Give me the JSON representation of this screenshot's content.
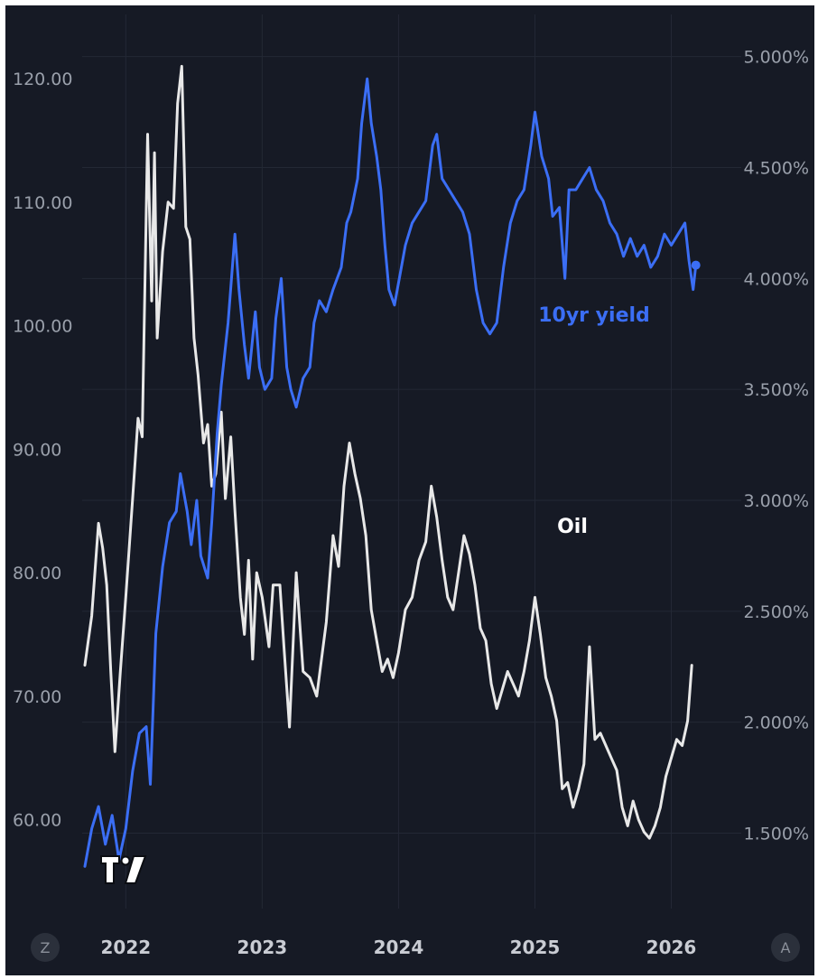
{
  "chart_data": {
    "type": "line",
    "left_axis": {
      "ticks": [
        "120.00",
        "110.00",
        "100.00",
        "90.00",
        "80.00",
        "70.00",
        "60.00"
      ],
      "tick_values": [
        120,
        110,
        100,
        90,
        80,
        70,
        60
      ],
      "range": [
        52.8,
        125.2
      ]
    },
    "right_axis": {
      "ticks": [
        "5.000%",
        "4.500%",
        "4.000%",
        "3.500%",
        "3.000%",
        "2.500%",
        "2.000%",
        "1.500%"
      ],
      "tick_values": [
        5.0,
        4.5,
        4.0,
        3.5,
        3.0,
        2.5,
        2.0,
        1.5
      ],
      "range": [
        1.16,
        5.19
      ]
    },
    "x_axis": {
      "ticks": [
        "2022",
        "2023",
        "2024",
        "2025",
        "2026"
      ],
      "tick_values": [
        2022.0,
        2023.0,
        2024.0,
        2025.0,
        2026.0
      ],
      "range": [
        2021.68,
        2026.48
      ]
    },
    "grid": true,
    "series": [
      {
        "name": "10yr yield",
        "axis": "right",
        "color": "#3b6ef5",
        "points": [
          [
            2021.7,
            1.35
          ],
          [
            2021.75,
            1.52
          ],
          [
            2021.8,
            1.62
          ],
          [
            2021.85,
            1.45
          ],
          [
            2021.9,
            1.58
          ],
          [
            2021.95,
            1.38
          ],
          [
            2022.0,
            1.52
          ],
          [
            2022.05,
            1.78
          ],
          [
            2022.1,
            1.95
          ],
          [
            2022.15,
            1.98
          ],
          [
            2022.18,
            1.72
          ],
          [
            2022.22,
            2.4
          ],
          [
            2022.27,
            2.7
          ],
          [
            2022.32,
            2.9
          ],
          [
            2022.37,
            2.95
          ],
          [
            2022.4,
            3.12
          ],
          [
            2022.45,
            2.95
          ],
          [
            2022.48,
            2.8
          ],
          [
            2022.52,
            3.0
          ],
          [
            2022.55,
            2.75
          ],
          [
            2022.6,
            2.65
          ],
          [
            2022.63,
            2.9
          ],
          [
            2022.67,
            3.3
          ],
          [
            2022.7,
            3.52
          ],
          [
            2022.75,
            3.8
          ],
          [
            2022.8,
            4.2
          ],
          [
            2022.83,
            3.95
          ],
          [
            2022.87,
            3.7
          ],
          [
            2022.9,
            3.55
          ],
          [
            2022.95,
            3.85
          ],
          [
            2022.98,
            3.6
          ],
          [
            2023.02,
            3.5
          ],
          [
            2023.07,
            3.55
          ],
          [
            2023.1,
            3.82
          ],
          [
            2023.14,
            4.0
          ],
          [
            2023.18,
            3.6
          ],
          [
            2023.21,
            3.5
          ],
          [
            2023.25,
            3.42
          ],
          [
            2023.3,
            3.55
          ],
          [
            2023.35,
            3.6
          ],
          [
            2023.38,
            3.8
          ],
          [
            2023.42,
            3.9
          ],
          [
            2023.47,
            3.85
          ],
          [
            2023.52,
            3.95
          ],
          [
            2023.58,
            4.05
          ],
          [
            2023.62,
            4.25
          ],
          [
            2023.65,
            4.3
          ],
          [
            2023.7,
            4.45
          ],
          [
            2023.73,
            4.7
          ],
          [
            2023.77,
            4.9
          ],
          [
            2023.8,
            4.7
          ],
          [
            2023.84,
            4.55
          ],
          [
            2023.87,
            4.4
          ],
          [
            2023.9,
            4.15
          ],
          [
            2023.93,
            3.95
          ],
          [
            2023.97,
            3.88
          ],
          [
            2024.0,
            3.98
          ],
          [
            2024.05,
            4.15
          ],
          [
            2024.1,
            4.25
          ],
          [
            2024.15,
            4.3
          ],
          [
            2024.2,
            4.35
          ],
          [
            2024.25,
            4.6
          ],
          [
            2024.28,
            4.65
          ],
          [
            2024.32,
            4.45
          ],
          [
            2024.37,
            4.4
          ],
          [
            2024.42,
            4.35
          ],
          [
            2024.47,
            4.3
          ],
          [
            2024.52,
            4.2
          ],
          [
            2024.57,
            3.95
          ],
          [
            2024.62,
            3.8
          ],
          [
            2024.67,
            3.75
          ],
          [
            2024.72,
            3.8
          ],
          [
            2024.77,
            4.05
          ],
          [
            2024.82,
            4.25
          ],
          [
            2024.87,
            4.35
          ],
          [
            2024.92,
            4.4
          ],
          [
            2024.97,
            4.6
          ],
          [
            2025.0,
            4.75
          ],
          [
            2025.05,
            4.55
          ],
          [
            2025.1,
            4.45
          ],
          [
            2025.13,
            4.28
          ],
          [
            2025.18,
            4.32
          ],
          [
            2025.22,
            4.0
          ],
          [
            2025.25,
            4.4
          ],
          [
            2025.3,
            4.4
          ],
          [
            2025.35,
            4.45
          ],
          [
            2025.4,
            4.5
          ],
          [
            2025.45,
            4.4
          ],
          [
            2025.5,
            4.35
          ],
          [
            2025.55,
            4.25
          ],
          [
            2025.6,
            4.2
          ],
          [
            2025.65,
            4.1
          ],
          [
            2025.7,
            4.18
          ],
          [
            2025.75,
            4.1
          ],
          [
            2025.8,
            4.15
          ],
          [
            2025.85,
            4.05
          ],
          [
            2025.9,
            4.1
          ],
          [
            2025.95,
            4.2
          ],
          [
            2026.0,
            4.15
          ],
          [
            2026.05,
            4.2
          ],
          [
            2026.1,
            4.25
          ],
          [
            2026.13,
            4.08
          ],
          [
            2026.16,
            3.95
          ],
          [
            2026.18,
            4.06
          ]
        ]
      },
      {
        "name": "Oil",
        "axis": "left",
        "color": "#e8e8e8",
        "points": [
          [
            2021.7,
            72.5
          ],
          [
            2021.75,
            76.5
          ],
          [
            2021.8,
            84.0
          ],
          [
            2021.83,
            82.0
          ],
          [
            2021.86,
            79.0
          ],
          [
            2021.89,
            72.0
          ],
          [
            2021.92,
            65.5
          ],
          [
            2021.96,
            72.0
          ],
          [
            2022.0,
            78.0
          ],
          [
            2022.05,
            86.0
          ],
          [
            2022.09,
            92.5
          ],
          [
            2022.12,
            91.0
          ],
          [
            2022.16,
            115.5
          ],
          [
            2022.19,
            102.0
          ],
          [
            2022.21,
            114.0
          ],
          [
            2022.23,
            99.0
          ],
          [
            2022.27,
            106.0
          ],
          [
            2022.31,
            110.0
          ],
          [
            2022.35,
            109.5
          ],
          [
            2022.38,
            118.0
          ],
          [
            2022.41,
            121.0
          ],
          [
            2022.44,
            108.0
          ],
          [
            2022.47,
            107.0
          ],
          [
            2022.5,
            99.0
          ],
          [
            2022.53,
            96.0
          ],
          [
            2022.57,
            90.5
          ],
          [
            2022.6,
            92.0
          ],
          [
            2022.63,
            87.0
          ],
          [
            2022.66,
            88.0
          ],
          [
            2022.7,
            93.0
          ],
          [
            2022.73,
            86.0
          ],
          [
            2022.77,
            91.0
          ],
          [
            2022.8,
            85.0
          ],
          [
            2022.84,
            78.0
          ],
          [
            2022.87,
            75.0
          ],
          [
            2022.9,
            81.0
          ],
          [
            2022.93,
            73.0
          ],
          [
            2022.96,
            80.0
          ],
          [
            2023.0,
            78.0
          ],
          [
            2023.05,
            74.0
          ],
          [
            2023.08,
            79.0
          ],
          [
            2023.13,
            79.0
          ],
          [
            2023.16,
            74.0
          ],
          [
            2023.2,
            67.5
          ],
          [
            2023.25,
            80.0
          ],
          [
            2023.3,
            72.0
          ],
          [
            2023.35,
            71.5
          ],
          [
            2023.4,
            70.0
          ],
          [
            2023.47,
            76.0
          ],
          [
            2023.52,
            83.0
          ],
          [
            2023.56,
            80.5
          ],
          [
            2023.6,
            87.0
          ],
          [
            2023.64,
            90.5
          ],
          [
            2023.68,
            88.0
          ],
          [
            2023.72,
            86.0
          ],
          [
            2023.76,
            83.0
          ],
          [
            2023.8,
            77.0
          ],
          [
            2023.84,
            74.5
          ],
          [
            2023.88,
            72.0
          ],
          [
            2023.92,
            73.0
          ],
          [
            2023.96,
            71.5
          ],
          [
            2024.0,
            73.5
          ],
          [
            2024.05,
            77.0
          ],
          [
            2024.1,
            78.0
          ],
          [
            2024.15,
            81.0
          ],
          [
            2024.2,
            82.5
          ],
          [
            2024.24,
            87.0
          ],
          [
            2024.28,
            84.5
          ],
          [
            2024.32,
            81.0
          ],
          [
            2024.36,
            78.0
          ],
          [
            2024.4,
            77.0
          ],
          [
            2024.44,
            80.0
          ],
          [
            2024.48,
            83.0
          ],
          [
            2024.52,
            81.5
          ],
          [
            2024.56,
            79.0
          ],
          [
            2024.6,
            75.5
          ],
          [
            2024.64,
            74.5
          ],
          [
            2024.68,
            71.0
          ],
          [
            2024.72,
            69.0
          ],
          [
            2024.76,
            70.5
          ],
          [
            2024.8,
            72.0
          ],
          [
            2024.84,
            71.0
          ],
          [
            2024.88,
            70.0
          ],
          [
            2024.92,
            72.0
          ],
          [
            2024.96,
            74.5
          ],
          [
            2025.0,
            78.0
          ],
          [
            2025.04,
            75.0
          ],
          [
            2025.08,
            71.5
          ],
          [
            2025.12,
            70.0
          ],
          [
            2025.16,
            68.0
          ],
          [
            2025.2,
            62.5
          ],
          [
            2025.24,
            63.0
          ],
          [
            2025.28,
            61.0
          ],
          [
            2025.32,
            62.5
          ],
          [
            2025.36,
            64.5
          ],
          [
            2025.4,
            74.0
          ],
          [
            2025.44,
            66.5
          ],
          [
            2025.48,
            67.0
          ],
          [
            2025.52,
            66.0
          ],
          [
            2025.56,
            65.0
          ],
          [
            2025.6,
            64.0
          ],
          [
            2025.64,
            61.0
          ],
          [
            2025.68,
            59.5
          ],
          [
            2025.72,
            61.5
          ],
          [
            2025.76,
            60.0
          ],
          [
            2025.8,
            59.0
          ],
          [
            2025.84,
            58.5
          ],
          [
            2025.88,
            59.5
          ],
          [
            2025.92,
            61.0
          ],
          [
            2025.96,
            63.5
          ],
          [
            2026.0,
            65.0
          ],
          [
            2026.04,
            66.5
          ],
          [
            2026.08,
            66.0
          ],
          [
            2026.12,
            68.0
          ],
          [
            2026.15,
            72.5
          ]
        ]
      }
    ],
    "labels": [
      {
        "text": "10yr yield",
        "color": "#3b6ef5"
      },
      {
        "text": "Oil",
        "color": "#ffffff"
      }
    ]
  },
  "corner": {
    "left": "Z",
    "right": "A"
  }
}
